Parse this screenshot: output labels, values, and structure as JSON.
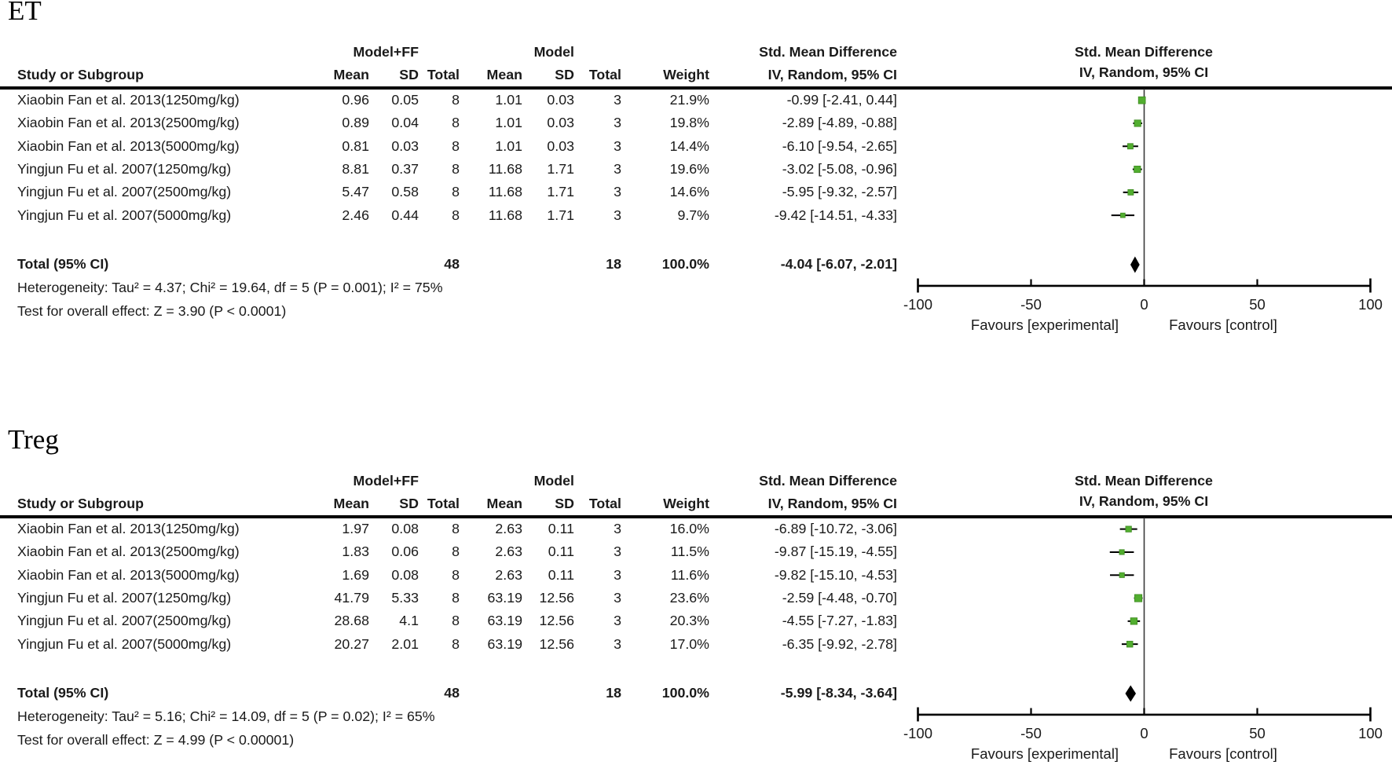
{
  "colors": {
    "marker_green": "#52AE30",
    "marker_green_dark": "#3D8A20",
    "diamond_black": "#000000",
    "line_black": "#1a1a1a"
  },
  "sections": [
    {
      "id": "ET",
      "title": "ET",
      "table": {
        "group_exp": "Model+FF",
        "group_ctrl": "Model",
        "group_smd": "Std. Mean Difference",
        "col_study": "Study or Subgroup",
        "col_mean": "Mean",
        "col_sd": "SD",
        "col_total": "Total",
        "col_weight": "Weight",
        "col_ci": "IV, Random, 95% CI",
        "rows": [
          {
            "study": "Xiaobin Fan et al. 2013(1250mg/kg)",
            "mean1": "0.96",
            "sd1": "0.05",
            "total1": "8",
            "mean2": "1.01",
            "sd2": "0.03",
            "total2": "3",
            "weight": "21.9%",
            "ci_text": "-0.99 [-2.41, 0.44]"
          },
          {
            "study": "Xiaobin Fan et al. 2013(2500mg/kg)",
            "mean1": "0.89",
            "sd1": "0.04",
            "total1": "8",
            "mean2": "1.01",
            "sd2": "0.03",
            "total2": "3",
            "weight": "19.8%",
            "ci_text": "-2.89 [-4.89, -0.88]"
          },
          {
            "study": "Xiaobin Fan et al. 2013(5000mg/kg)",
            "mean1": "0.81",
            "sd1": "0.03",
            "total1": "8",
            "mean2": "1.01",
            "sd2": "0.03",
            "total2": "3",
            "weight": "14.4%",
            "ci_text": "-6.10 [-9.54, -2.65]"
          },
          {
            "study": "Yingjun Fu et al. 2007(1250mg/kg)",
            "mean1": "8.81",
            "sd1": "0.37",
            "total1": "8",
            "mean2": "11.68",
            "sd2": "1.71",
            "total2": "3",
            "weight": "19.6%",
            "ci_text": "-3.02 [-5.08, -0.96]"
          },
          {
            "study": "Yingjun Fu et al. 2007(2500mg/kg)",
            "mean1": "5.47",
            "sd1": "0.58",
            "total1": "8",
            "mean2": "11.68",
            "sd2": "1.71",
            "total2": "3",
            "weight": "14.6%",
            "ci_text": "-5.95 [-9.32, -2.57]"
          },
          {
            "study": "Yingjun Fu et al. 2007(5000mg/kg)",
            "mean1": "2.46",
            "sd1": "0.44",
            "total1": "8",
            "mean2": "11.68",
            "sd2": "1.71",
            "total2": "3",
            "weight": "9.7%",
            "ci_text": "-9.42 [-14.51, -4.33]"
          }
        ],
        "total_label": "Total (95% CI)",
        "total_n1": "48",
        "total_n2": "18",
        "total_weight": "100.0%",
        "total_ci": "-4.04 [-6.07, -2.01]",
        "heterogeneity": "Heterogeneity: Tau² = 4.37; Chi² = 19.64, df = 5 (P = 0.001); I² = 75%",
        "overall_effect": "Test for overall effect: Z = 3.90 (P < 0.0001)"
      },
      "plot": {
        "header1": "Std. Mean Difference",
        "header2": "IV, Random, 95% CI"
      }
    },
    {
      "id": "Treg",
      "title": "Treg",
      "table": {
        "group_exp": "Model+FF",
        "group_ctrl": "Model",
        "group_smd": "Std. Mean Difference",
        "col_study": "Study or Subgroup",
        "col_mean": "Mean",
        "col_sd": "SD",
        "col_total": "Total",
        "col_weight": "Weight",
        "col_ci": "IV, Random, 95% CI",
        "rows": [
          {
            "study": "Xiaobin Fan et al. 2013(1250mg/kg)",
            "mean1": "1.97",
            "sd1": "0.08",
            "total1": "8",
            "mean2": "2.63",
            "sd2": "0.11",
            "total2": "3",
            "weight": "16.0%",
            "ci_text": "-6.89 [-10.72, -3.06]"
          },
          {
            "study": "Xiaobin Fan et al. 2013(2500mg/kg)",
            "mean1": "1.83",
            "sd1": "0.06",
            "total1": "8",
            "mean2": "2.63",
            "sd2": "0.11",
            "total2": "3",
            "weight": "11.5%",
            "ci_text": "-9.87 [-15.19, -4.55]"
          },
          {
            "study": "Xiaobin Fan et al. 2013(5000mg/kg)",
            "mean1": "1.69",
            "sd1": "0.08",
            "total1": "8",
            "mean2": "2.63",
            "sd2": "0.11",
            "total2": "3",
            "weight": "11.6%",
            "ci_text": "-9.82 [-15.10, -4.53]"
          },
          {
            "study": "Yingjun Fu et al. 2007(1250mg/kg)",
            "mean1": "41.79",
            "sd1": "5.33",
            "total1": "8",
            "mean2": "63.19",
            "sd2": "12.56",
            "total2": "3",
            "weight": "23.6%",
            "ci_text": "-2.59 [-4.48, -0.70]"
          },
          {
            "study": "Yingjun Fu et al. 2007(2500mg/kg)",
            "mean1": "28.68",
            "sd1": "4.1",
            "total1": "8",
            "mean2": "63.19",
            "sd2": "12.56",
            "total2": "3",
            "weight": "20.3%",
            "ci_text": "-4.55 [-7.27, -1.83]"
          },
          {
            "study": "Yingjun Fu et al. 2007(5000mg/kg)",
            "mean1": "20.27",
            "sd1": "2.01",
            "total1": "8",
            "mean2": "63.19",
            "sd2": "12.56",
            "total2": "3",
            "weight": "17.0%",
            "ci_text": "-6.35 [-9.92, -2.78]"
          }
        ],
        "total_label": "Total (95% CI)",
        "total_n1": "48",
        "total_n2": "18",
        "total_weight": "100.0%",
        "total_ci": "-5.99 [-8.34, -3.64]",
        "heterogeneity": "Heterogeneity: Tau² = 5.16; Chi² = 14.09, df = 5 (P = 0.02); I² = 65%",
        "overall_effect": "Test for overall effect: Z = 4.99 (P < 0.00001)"
      },
      "plot": {
        "header1": "Std. Mean Difference",
        "header2": "IV, Random, 95% CI"
      }
    }
  ],
  "chart_data": [
    {
      "type": "scatter",
      "variant": "forest-plot",
      "title": "ET",
      "effect_measure": "Std. Mean Difference",
      "method": "IV, Random, 95% CI",
      "xlim": [
        -100,
        100
      ],
      "x_ticks": [
        -100,
        -50,
        0,
        50,
        100
      ],
      "favours_left": "Favours [experimental]",
      "favours_right": "Favours [control]",
      "studies": [
        "Xiaobin Fan et al. 2013(1250mg/kg)",
        "Xiaobin Fan et al. 2013(2500mg/kg)",
        "Xiaobin Fan et al. 2013(5000mg/kg)",
        "Yingjun Fu et al. 2007(1250mg/kg)",
        "Yingjun Fu et al. 2007(2500mg/kg)",
        "Yingjun Fu et al. 2007(5000mg/kg)"
      ],
      "smd": [
        -0.99,
        -2.89,
        -6.1,
        -3.02,
        -5.95,
        -9.42
      ],
      "ci_low": [
        -2.41,
        -4.89,
        -9.54,
        -5.08,
        -9.32,
        -14.51
      ],
      "ci_high": [
        0.44,
        -0.88,
        -2.65,
        -0.96,
        -2.57,
        -4.33
      ],
      "weights_pct": [
        21.9,
        19.8,
        14.4,
        19.6,
        14.6,
        9.7
      ],
      "pooled": {
        "smd": -4.04,
        "ci_low": -6.07,
        "ci_high": -2.01,
        "weight_pct": 100.0
      }
    },
    {
      "type": "scatter",
      "variant": "forest-plot",
      "title": "Treg",
      "effect_measure": "Std. Mean Difference",
      "method": "IV, Random, 95% CI",
      "xlim": [
        -100,
        100
      ],
      "x_ticks": [
        -100,
        -50,
        0,
        50,
        100
      ],
      "favours_left": "Favours [experimental]",
      "favours_right": "Favours [control]",
      "studies": [
        "Xiaobin Fan et al. 2013(1250mg/kg)",
        "Xiaobin Fan et al. 2013(2500mg/kg)",
        "Xiaobin Fan et al. 2013(5000mg/kg)",
        "Yingjun Fu et al. 2007(1250mg/kg)",
        "Yingjun Fu et al. 2007(2500mg/kg)",
        "Yingjun Fu et al. 2007(5000mg/kg)"
      ],
      "smd": [
        -6.89,
        -9.87,
        -9.82,
        -2.59,
        -4.55,
        -6.35
      ],
      "ci_low": [
        -10.72,
        -15.19,
        -15.1,
        -4.48,
        -7.27,
        -9.92
      ],
      "ci_high": [
        -3.06,
        -4.55,
        -4.53,
        -0.7,
        -1.83,
        -2.78
      ],
      "weights_pct": [
        16.0,
        11.5,
        11.6,
        23.6,
        20.3,
        17.0
      ],
      "pooled": {
        "smd": -5.99,
        "ci_low": -8.34,
        "ci_high": -3.64,
        "weight_pct": 100.0
      }
    }
  ]
}
